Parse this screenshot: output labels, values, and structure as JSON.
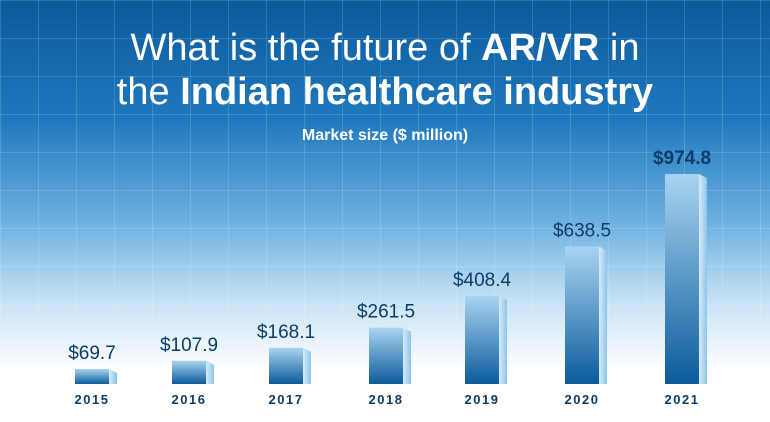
{
  "header": {
    "title_line1_a": "What is the future of ",
    "title_line1_b": "AR/VR",
    "title_line1_c": " in",
    "title_line2_a": "the ",
    "title_line2_b": "Indian healthcare industry",
    "subtitle": "Market size ($ million)"
  },
  "colors": {
    "bar_top": "#0b5b9b",
    "bar_light": "#a9d4f1",
    "label": "#0d3d66",
    "accent": "#ffffff"
  },
  "chart_data": {
    "type": "bar",
    "title": "What is the future of AR/VR in the Indian healthcare industry",
    "subtitle": "Market size ($ million)",
    "xlabel": "",
    "ylabel": "",
    "categories": [
      "2015",
      "2016",
      "2017",
      "2018",
      "2019",
      "2020",
      "2021"
    ],
    "values": [
      69.7,
      107.9,
      168.1,
      261.5,
      408.4,
      638.5,
      974.8
    ],
    "value_labels": [
      "$69.7",
      "$107.9",
      "$168.1",
      "$261.5",
      "$408.4",
      "$638.5",
      "$974.8"
    ],
    "ylim": [
      0,
      1000
    ],
    "grid": true,
    "legend": "none"
  }
}
